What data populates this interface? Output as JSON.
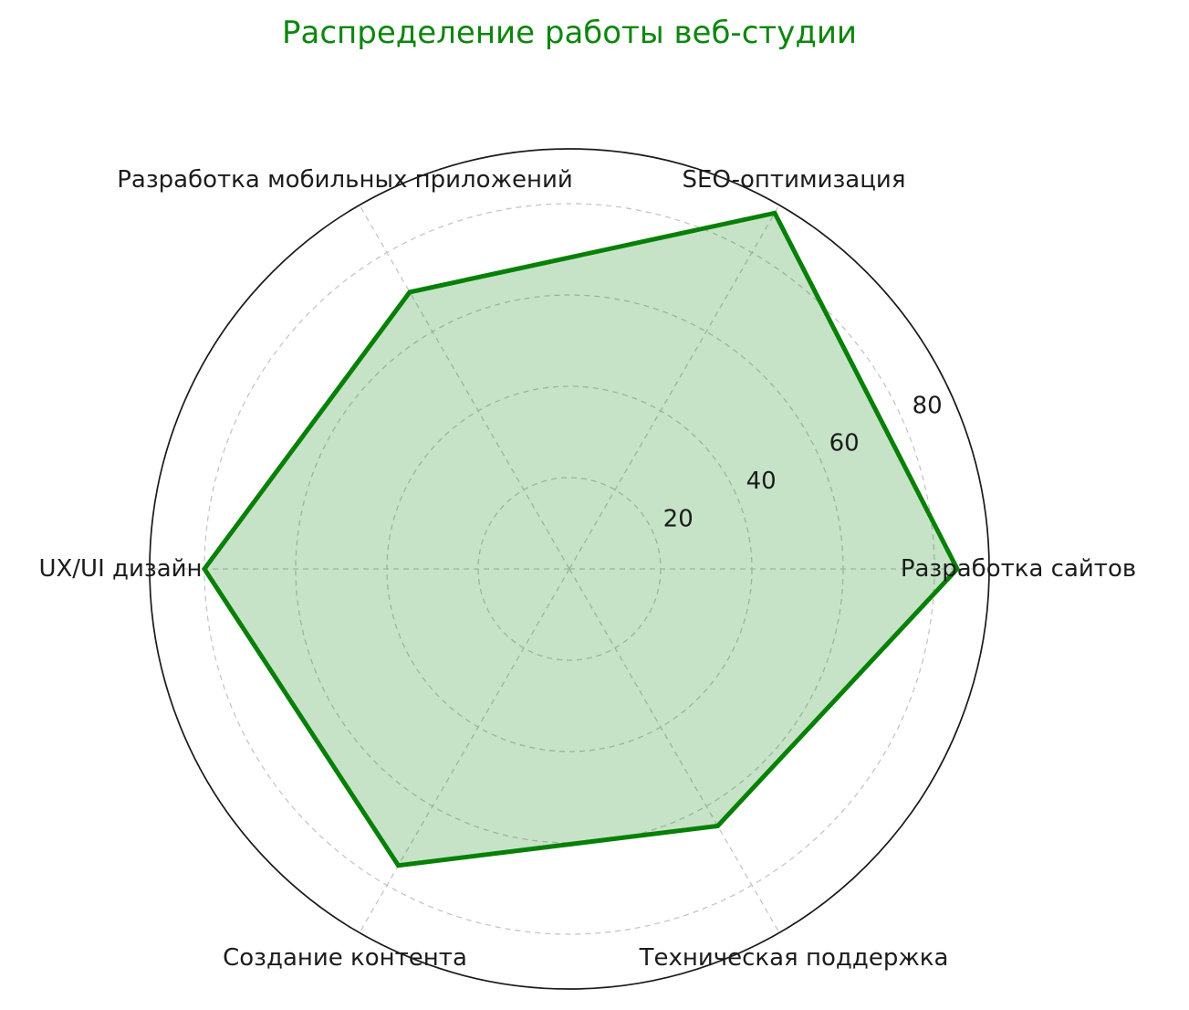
{
  "title": {
    "text": "Распределение работы веб-студии",
    "color": "#0e860e"
  },
  "chart_data": {
    "type": "radar",
    "categories": [
      "Разработка сайтов",
      "SEO-оптимизация",
      "Разработка мобильных приложений",
      "UX/UI дизайн",
      "Создание контента",
      "Техническая поддержка"
    ],
    "values": [
      85,
      90,
      70,
      80,
      75,
      65
    ],
    "angles_deg": [
      0,
      60,
      120,
      180,
      240,
      300
    ],
    "r_ticks": [
      20,
      40,
      60,
      80
    ],
    "r_tick_labels": [
      "20",
      "40",
      "60",
      "80"
    ],
    "r_max": 92,
    "grid": "on",
    "legend": "none",
    "line_color": "#078007",
    "fill_color": "rgba(0,128,0,0.22)",
    "grid_color": "#c6c6c6",
    "outline_color": "#1a1a1a",
    "label_color": "#1c1c1c"
  }
}
